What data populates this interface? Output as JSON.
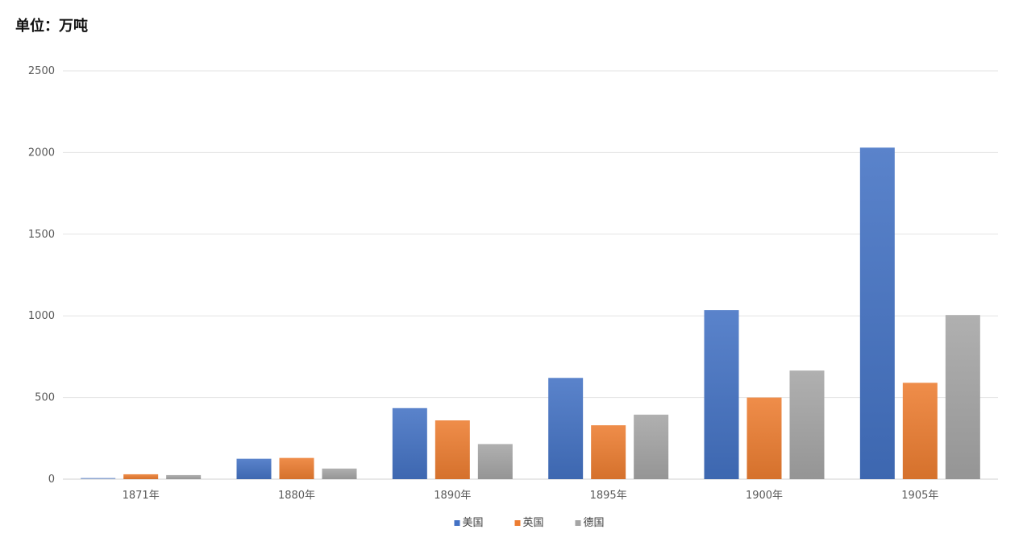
{
  "unit_label": "单位：万吨",
  "chart_data": {
    "type": "bar",
    "title": "",
    "xlabel": "",
    "ylabel": "单位：万吨",
    "categories": [
      "1871年",
      "1880年",
      "1890年",
      "1895年",
      "1900年",
      "1905年"
    ],
    "series": [
      {
        "name": "美国",
        "color": "#4472C4",
        "values": [
          8,
          125,
          435,
          620,
          1035,
          2030
        ]
      },
      {
        "name": "英国",
        "color": "#ED7D31",
        "values": [
          30,
          130,
          360,
          330,
          500,
          590
        ]
      },
      {
        "name": "德国",
        "color": "#A5A5A5",
        "values": [
          25,
          65,
          215,
          395,
          665,
          1005
        ]
      }
    ],
    "ylim": [
      0,
      2500
    ],
    "yticks": [
      0,
      500,
      1000,
      1500,
      2000,
      2500
    ],
    "grid": true,
    "legend_position": "bottom"
  }
}
